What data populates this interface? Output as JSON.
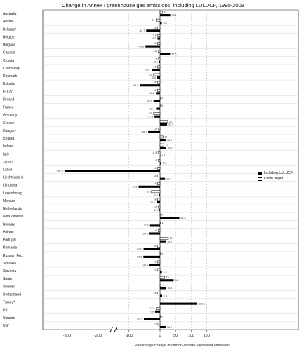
{
  "chart_data": {
    "type": "bar",
    "orientation": "horizontal",
    "title": "Change in Annex I greenhouse gas emissions, including LULUCF, 1990-2008",
    "xlabel": "Percentage change in carbon-dioxide-equivalent emissions",
    "ylabel": "",
    "xlim": [
      -350,
      150
    ],
    "xticks": [
      -300,
      -200,
      -100,
      0,
      50,
      100,
      150
    ],
    "xtick_labels": [
      "-300",
      "-200",
      "-100",
      "0",
      "50",
      "100",
      "150"
    ],
    "axis_break": true,
    "grid": true,
    "legend_position": "right",
    "categories": [
      "Australia",
      "Austria",
      "Belarus*",
      "Belgium",
      "Bulgaria",
      "Canada",
      "Croatia",
      "Czech Rep.",
      "Denmark",
      "Estonia",
      "EU 27",
      "Finland",
      "France",
      "Germany",
      "Greece",
      "Hungary",
      "Iceland",
      "Ireland",
      "Italy",
      "Japan",
      "Latvia",
      "Liechtenstein",
      "Lithuania",
      "Luxembourg",
      "Monaco",
      "Netherlands",
      "New Zealand",
      "Norway",
      "Poland",
      "Portugal",
      "Romania",
      "Russian Fed.",
      "Slovakia",
      "Slovenia",
      "Spain",
      "Sweden",
      "Switzerland",
      "Turkey*",
      "UK",
      "Ukraine",
      "US*"
    ],
    "series": [
      {
        "name": "Including LULUCF",
        "color": "#000000",
        "values": [
          33.1,
          5.8,
          -44.7,
          -8.2,
          -46.9,
          32.6,
          -2.6,
          -26.7,
          -9.3,
          -65.0,
          -13.2,
          -20.9,
          -12.7,
          -17.8,
          22.9,
          -38.1,
          18.0,
          18.9,
          1.3,
          3.7,
          -307.8,
          16.1,
          -69.1,
          -2.2,
          -11.1,
          -2.1,
          62.4,
          -32.2,
          -34.6,
          18.3,
          -53.0,
          -53.6,
          -34.6,
          6.2,
          44.0,
          18.8,
          6.9,
          120.1,
          -16.0,
          -52.2,
          18.0
        ],
        "value_labels": [
          "33.1",
          "5.8",
          "-44.7",
          "-8.2",
          "-46.9",
          "32.6",
          "-2.6",
          "-26.7",
          "-9.3",
          "-65.0",
          "-13.2",
          "-20.9",
          "-12.7",
          "-17.8",
          "22.9",
          "-38.1",
          "18.0",
          "18.9",
          "1.3",
          "3.7",
          "-307.8",
          "16.1",
          "-69.1",
          "-2.2",
          "-11.1",
          "-2.1",
          "62.4",
          "-32.2",
          "-34.6",
          "18.3",
          "-53.0",
          "-53.6",
          "-34.6",
          "6.2",
          "44",
          "18.8",
          "6.9",
          "120.1",
          "-16",
          "-52.2",
          "18.0"
        ]
      },
      {
        "name": "Kyoto target",
        "color": "#ffffff",
        "values": [
          8,
          -13,
          -8,
          -7.5,
          -8,
          -6,
          -5,
          -8,
          -21,
          -8,
          -8,
          0,
          0,
          -21,
          25,
          -6,
          10,
          13,
          -6.5,
          -6,
          -8,
          -8,
          -8,
          -28,
          -8,
          -6,
          0,
          1,
          -6,
          27,
          -8,
          0,
          -8,
          -8,
          15,
          4,
          -8,
          null,
          -12.5,
          0,
          -7
        ],
        "value_labels": [
          "8",
          "-13",
          "-8",
          "-7.5",
          "-8",
          "-6",
          "-5",
          "-8",
          "-21",
          "-8",
          "-8",
          "0",
          "0",
          "-21",
          "25",
          "-6",
          "10",
          "13",
          "-6.5",
          "-6",
          "-8",
          "-8",
          "-8",
          "-28",
          "-8",
          "-6",
          "0",
          "1",
          "-6",
          "27",
          "-8",
          "0",
          "-8",
          "-8",
          "15",
          "4",
          "-8",
          "",
          "-12.5",
          "0",
          "-7"
        ]
      }
    ]
  }
}
